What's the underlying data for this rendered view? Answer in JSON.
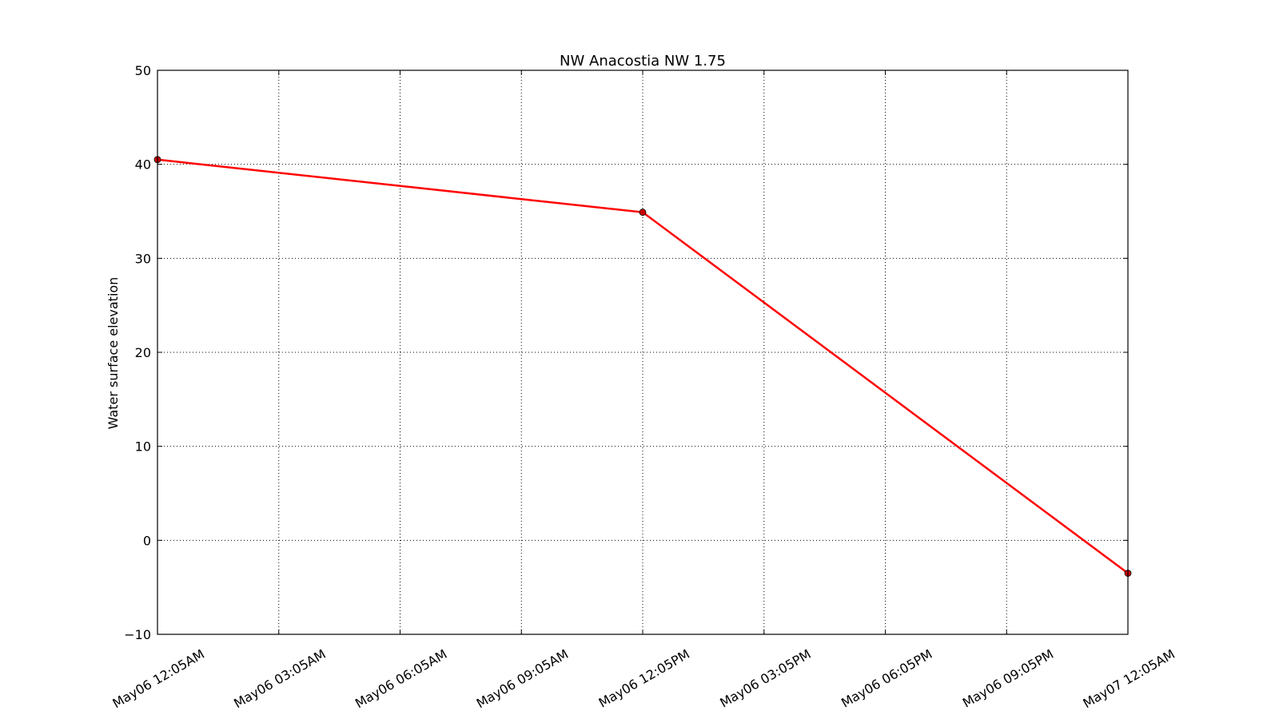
{
  "chart_data": {
    "type": "line",
    "title": "NW Anacostia NW 1.75",
    "xlabel": "",
    "ylabel": "Water surface elevation",
    "categories": [
      "May06 12:05AM",
      "May06 03:05AM",
      "May06 06:05AM",
      "May06 09:05AM",
      "May06 12:05PM",
      "May06 03:05PM",
      "May06 06:05PM",
      "May06 09:05PM",
      "May07 12:05AM"
    ],
    "yticks": [
      "50",
      "40",
      "30",
      "20",
      "10",
      "0",
      "−10"
    ],
    "yticks_values": [
      50,
      40,
      30,
      20,
      10,
      0,
      -10
    ],
    "ylim": [
      -10,
      50
    ],
    "grid": true,
    "legend": "none",
    "series": [
      {
        "color": "#ff0000",
        "marker_color": "#cc0000",
        "points": [
          {
            "x": "May06 12:05AM",
            "y": 40.5
          },
          {
            "x": "May06 12:05PM",
            "y": 34.9
          },
          {
            "x": "May07 12:05AM",
            "y": -3.5
          }
        ]
      }
    ]
  }
}
